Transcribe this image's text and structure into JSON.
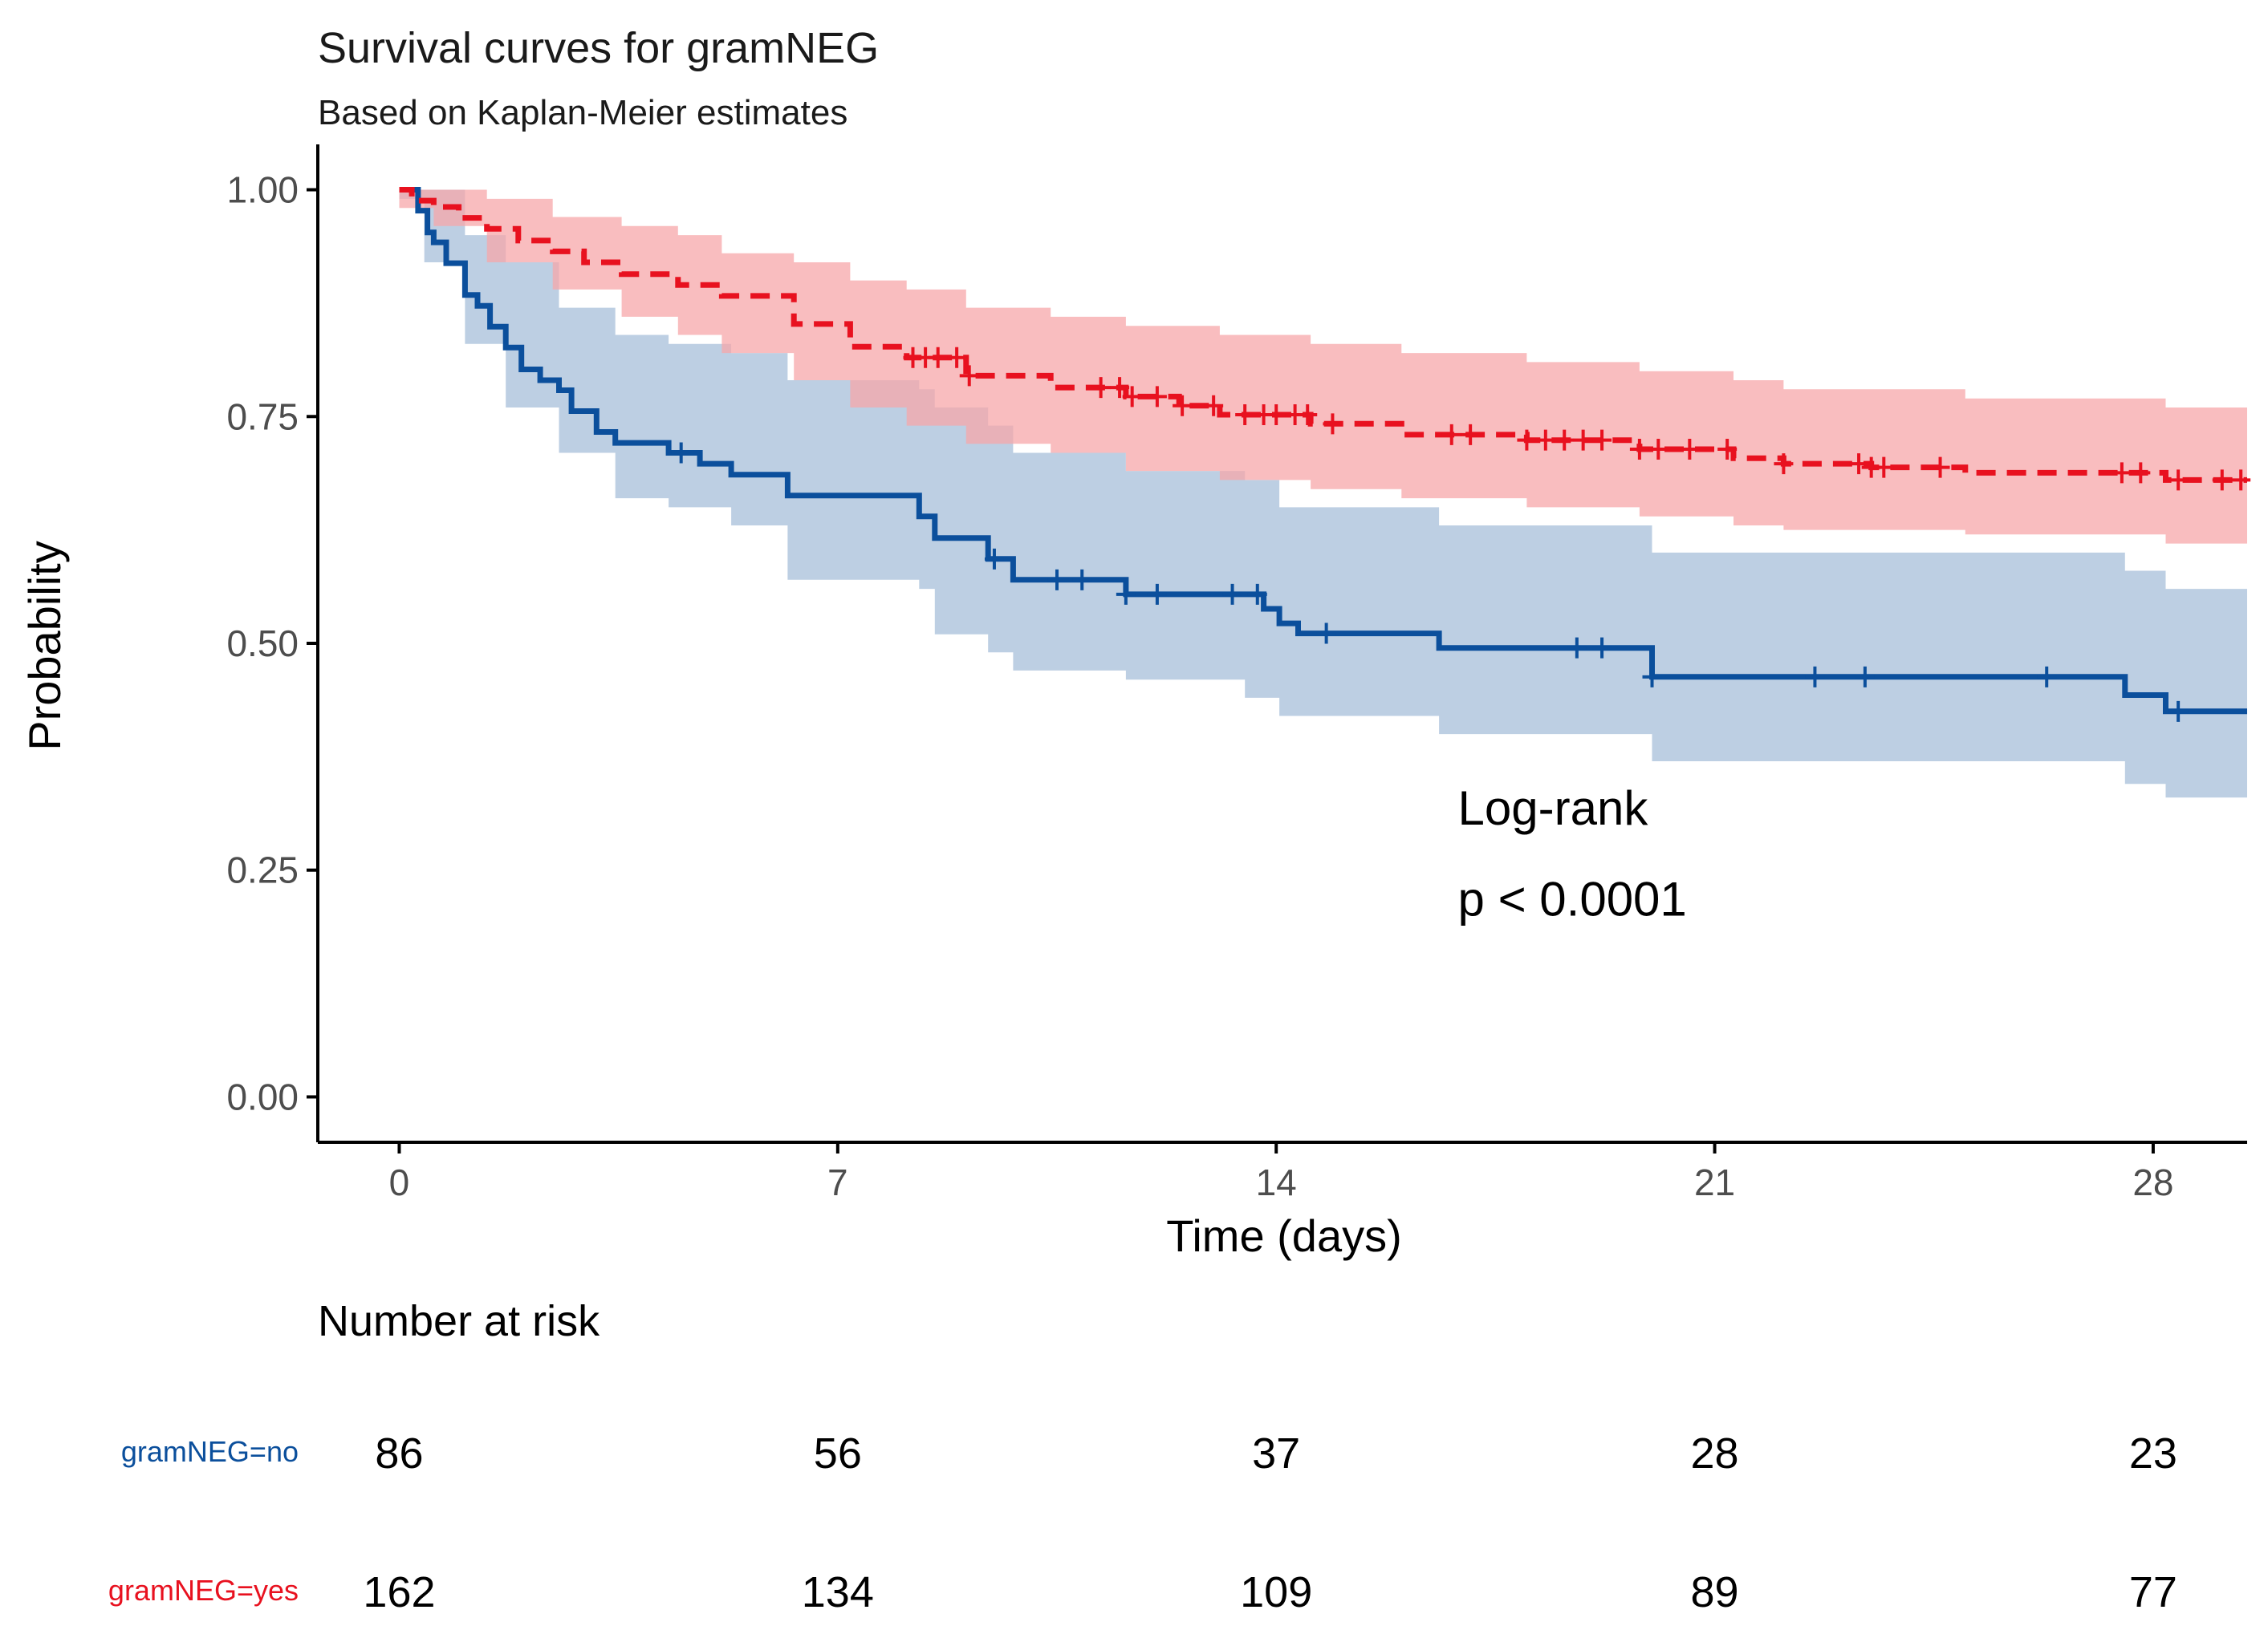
{
  "chart_data": {
    "type": "line",
    "subtype": "kaplan-meier",
    "title": "Survival curves for gramNEG",
    "subtitle": "Based on Kaplan-Meier estimates",
    "xlabel": "Time (days)",
    "ylabel": "Probability",
    "xlim": [
      -1.3,
      29.5
    ],
    "ylim": [
      -0.05,
      1.05
    ],
    "x_ticks": [
      0,
      7,
      14,
      21,
      28
    ],
    "x_tick_labels": [
      "0",
      "7",
      "14",
      "21",
      "28"
    ],
    "y_ticks": [
      0,
      0.25,
      0.5,
      0.75,
      1.0
    ],
    "y_tick_labels": [
      "0.00",
      "0.25",
      "0.50",
      "0.75",
      "1.00"
    ],
    "grid": false,
    "annotation": {
      "line1": "Log-rank",
      "line2": "p < 0.0001",
      "x": 16.9,
      "y1": 0.3,
      "y2": 0.2
    },
    "series": [
      {
        "name": "gramNEG=no",
        "color": "#0b4f9c",
        "band_color": "#a7bfd9",
        "line_style": "solid",
        "steps": [
          [
            0,
            1.0
          ],
          [
            0.3,
            0.977
          ],
          [
            0.45,
            0.953
          ],
          [
            0.55,
            0.942
          ],
          [
            0.75,
            0.919
          ],
          [
            1.05,
            0.884
          ],
          [
            1.25,
            0.872
          ],
          [
            1.45,
            0.849
          ],
          [
            1.7,
            0.826
          ],
          [
            1.95,
            0.802
          ],
          [
            2.25,
            0.79
          ],
          [
            2.55,
            0.779
          ],
          [
            2.75,
            0.756
          ],
          [
            3.15,
            0.733
          ],
          [
            3.45,
            0.721
          ],
          [
            4.3,
            0.71
          ],
          [
            4.8,
            0.698
          ],
          [
            5.3,
            0.686
          ],
          [
            6.2,
            0.663
          ],
          [
            8.3,
            0.64
          ],
          [
            8.55,
            0.616
          ],
          [
            9.4,
            0.593
          ],
          [
            9.8,
            0.57
          ],
          [
            10.85,
            0.57
          ],
          [
            11.6,
            0.554
          ],
          [
            13.5,
            0.554
          ],
          [
            13.8,
            0.538
          ],
          [
            14.05,
            0.522
          ],
          [
            14.35,
            0.511
          ],
          [
            16.6,
            0.495
          ],
          [
            18.6,
            0.495
          ],
          [
            20.0,
            0.463
          ],
          [
            27.3,
            0.463
          ],
          [
            27.55,
            0.443
          ],
          [
            28.2,
            0.425
          ],
          [
            29.5,
            0.425
          ]
        ],
        "band_upper": [
          [
            0,
            1.0
          ],
          [
            0.4,
            1.0
          ],
          [
            1.05,
            0.95
          ],
          [
            1.7,
            0.92
          ],
          [
            2.55,
            0.87
          ],
          [
            3.45,
            0.84
          ],
          [
            4.3,
            0.83
          ],
          [
            5.3,
            0.82
          ],
          [
            6.2,
            0.79
          ],
          [
            8.3,
            0.78
          ],
          [
            8.55,
            0.76
          ],
          [
            9.4,
            0.74
          ],
          [
            9.8,
            0.71
          ],
          [
            11.6,
            0.69
          ],
          [
            13.5,
            0.68
          ],
          [
            14.05,
            0.65
          ],
          [
            16.6,
            0.63
          ],
          [
            18.6,
            0.63
          ],
          [
            20.0,
            0.6
          ],
          [
            27.55,
            0.58
          ],
          [
            28.2,
            0.56
          ],
          [
            29.5,
            0.56
          ]
        ],
        "band_lower": [
          [
            0,
            0.99
          ],
          [
            0.4,
            0.92
          ],
          [
            1.05,
            0.83
          ],
          [
            1.7,
            0.76
          ],
          [
            2.55,
            0.71
          ],
          [
            3.45,
            0.66
          ],
          [
            4.3,
            0.65
          ],
          [
            5.3,
            0.63
          ],
          [
            6.2,
            0.57
          ],
          [
            8.3,
            0.56
          ],
          [
            8.55,
            0.51
          ],
          [
            9.4,
            0.49
          ],
          [
            9.8,
            0.47
          ],
          [
            11.6,
            0.46
          ],
          [
            13.5,
            0.44
          ],
          [
            14.05,
            0.42
          ],
          [
            16.6,
            0.4
          ],
          [
            18.6,
            0.4
          ],
          [
            20.0,
            0.37
          ],
          [
            27.55,
            0.345
          ],
          [
            28.2,
            0.33
          ],
          [
            29.5,
            0.33
          ]
        ],
        "censor_times": [
          4.5,
          9.5,
          10.5,
          10.9,
          11.6,
          12.1,
          13.3,
          13.7,
          14.8,
          18.8,
          19.2,
          20.0,
          22.6,
          23.4,
          26.3,
          28.4
        ],
        "risk_counts": [
          86,
          56,
          37,
          28,
          23
        ]
      },
      {
        "name": "gramNEG=yes",
        "color": "#e8111f",
        "band_color": "#f7a7aa",
        "line_style": "dashed",
        "steps": [
          [
            0,
            1.0
          ],
          [
            0.2,
            0.988
          ],
          [
            0.55,
            0.981
          ],
          [
            0.95,
            0.969
          ],
          [
            1.4,
            0.957
          ],
          [
            1.9,
            0.944
          ],
          [
            2.45,
            0.932
          ],
          [
            2.95,
            0.92
          ],
          [
            3.55,
            0.907
          ],
          [
            4.45,
            0.895
          ],
          [
            5.15,
            0.883
          ],
          [
            6.3,
            0.852
          ],
          [
            7.2,
            0.827
          ],
          [
            8.1,
            0.815
          ],
          [
            9.05,
            0.795
          ],
          [
            10.4,
            0.782
          ],
          [
            11.6,
            0.772
          ],
          [
            12.45,
            0.762
          ],
          [
            13.1,
            0.752
          ],
          [
            14.55,
            0.742
          ],
          [
            16.0,
            0.73
          ],
          [
            18.0,
            0.724
          ],
          [
            19.8,
            0.714
          ],
          [
            21.3,
            0.704
          ],
          [
            22.1,
            0.698
          ],
          [
            23.5,
            0.694
          ],
          [
            25.0,
            0.688
          ],
          [
            28.2,
            0.68
          ],
          [
            29.5,
            0.68
          ]
        ],
        "band_upper": [
          [
            0,
            1.0
          ],
          [
            0.55,
            1.0
          ],
          [
            1.4,
            0.99
          ],
          [
            2.45,
            0.97
          ],
          [
            3.55,
            0.96
          ],
          [
            4.45,
            0.95
          ],
          [
            5.15,
            0.93
          ],
          [
            6.3,
            0.92
          ],
          [
            7.2,
            0.9
          ],
          [
            8.1,
            0.89
          ],
          [
            9.05,
            0.87
          ],
          [
            10.4,
            0.86
          ],
          [
            11.6,
            0.85
          ],
          [
            13.1,
            0.84
          ],
          [
            14.55,
            0.83
          ],
          [
            16.0,
            0.82
          ],
          [
            18.0,
            0.81
          ],
          [
            19.8,
            0.8
          ],
          [
            21.3,
            0.79
          ],
          [
            22.1,
            0.78
          ],
          [
            25.0,
            0.77
          ],
          [
            28.2,
            0.76
          ],
          [
            29.5,
            0.76
          ]
        ],
        "band_lower": [
          [
            0,
            0.98
          ],
          [
            0.55,
            0.96
          ],
          [
            1.4,
            0.92
          ],
          [
            2.45,
            0.89
          ],
          [
            3.55,
            0.86
          ],
          [
            4.45,
            0.84
          ],
          [
            5.15,
            0.82
          ],
          [
            6.3,
            0.79
          ],
          [
            7.2,
            0.76
          ],
          [
            8.1,
            0.74
          ],
          [
            9.05,
            0.72
          ],
          [
            10.4,
            0.71
          ],
          [
            11.6,
            0.69
          ],
          [
            13.1,
            0.68
          ],
          [
            14.55,
            0.67
          ],
          [
            16.0,
            0.66
          ],
          [
            18.0,
            0.65
          ],
          [
            19.8,
            0.64
          ],
          [
            21.3,
            0.63
          ],
          [
            22.1,
            0.625
          ],
          [
            25.0,
            0.62
          ],
          [
            28.2,
            0.61
          ],
          [
            29.5,
            0.61
          ]
        ],
        "censor_times": [
          8.2,
          8.4,
          8.6,
          8.9,
          9.1,
          11.2,
          11.5,
          11.7,
          12.1,
          12.5,
          13.0,
          13.5,
          13.8,
          14.0,
          14.3,
          14.5,
          14.9,
          16.8,
          17.1,
          18.0,
          18.3,
          18.6,
          18.9,
          19.2,
          19.8,
          20.1,
          20.6,
          21.2,
          22.1,
          23.3,
          23.5,
          23.7,
          24.6,
          27.5,
          27.8,
          28.4,
          29.1,
          29.4
        ],
        "risk_counts": [
          162,
          134,
          109,
          89,
          77
        ]
      }
    ],
    "risk_table": {
      "title": "Number at risk",
      "times": [
        0,
        7,
        14,
        21,
        28
      ]
    }
  }
}
